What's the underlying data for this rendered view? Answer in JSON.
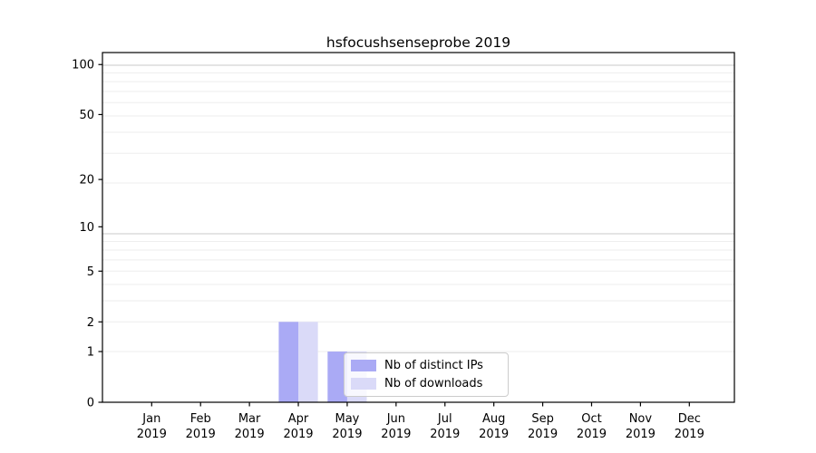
{
  "chart_data": {
    "type": "bar",
    "title": "hsfocushsenseprobe 2019",
    "categories": [
      {
        "month": "Jan",
        "year": "2019"
      },
      {
        "month": "Feb",
        "year": "2019"
      },
      {
        "month": "Mar",
        "year": "2019"
      },
      {
        "month": "Apr",
        "year": "2019"
      },
      {
        "month": "May",
        "year": "2019"
      },
      {
        "month": "Jun",
        "year": "2019"
      },
      {
        "month": "Jul",
        "year": "2019"
      },
      {
        "month": "Aug",
        "year": "2019"
      },
      {
        "month": "Sep",
        "year": "2019"
      },
      {
        "month": "Oct",
        "year": "2019"
      },
      {
        "month": "Nov",
        "year": "2019"
      },
      {
        "month": "Dec",
        "year": "2019"
      }
    ],
    "series": [
      {
        "name": "Nb of distinct IPs",
        "color": "#aaaaf5",
        "values": [
          0,
          0,
          0,
          2,
          1,
          0,
          0,
          0,
          0,
          0,
          0,
          0
        ]
      },
      {
        "name": "Nb of downloads",
        "color": "#dadaf8",
        "values": [
          0,
          0,
          0,
          2,
          1,
          0,
          0,
          0,
          0,
          0,
          0,
          0
        ]
      }
    ],
    "xlabel": "",
    "ylabel": "",
    "yscale": "log1p",
    "yticks": [
      0,
      1,
      2,
      5,
      10,
      20,
      50,
      100
    ],
    "ylim": [
      0,
      118
    ],
    "grid": "horizontal-minor-and-major",
    "legend_position": "lower-right-inside",
    "colors": {
      "spine": "#000000",
      "grid_minor": "#eeeeee",
      "grid_major": "#c9c9c9",
      "tick_text": "#000000",
      "legend_border": "#cccccc"
    }
  }
}
